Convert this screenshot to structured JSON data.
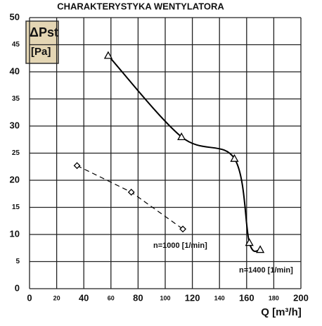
{
  "chart_data": {
    "type": "line",
    "title": "CHARAKTERYSTYKA WENTYLATORA",
    "y_label": "ΔPst",
    "y_unit": "[Pa]",
    "x_label": "Q [m³/h]",
    "xlim": [
      0,
      200
    ],
    "xticks": [
      0,
      20,
      40,
      60,
      80,
      100,
      120,
      140,
      160,
      180,
      200
    ],
    "ylim": [
      0,
      50
    ],
    "yticks": [
      0,
      5,
      10,
      15,
      20,
      25,
      30,
      35,
      40,
      45,
      50
    ],
    "grid": true,
    "series": [
      {
        "name": "n=1400 [1/min]",
        "color": "#000000",
        "marker": "triangle",
        "dash": false,
        "x": [
          58,
          112,
          151,
          162,
          170
        ],
        "values": [
          43,
          28,
          24,
          8.5,
          7.2
        ]
      },
      {
        "name": "n=1000 [1/min]",
        "color": "#000000",
        "marker": "diamond",
        "dash": true,
        "x": [
          35,
          75,
          113
        ],
        "values": [
          22.7,
          17.8,
          11
        ]
      }
    ]
  }
}
